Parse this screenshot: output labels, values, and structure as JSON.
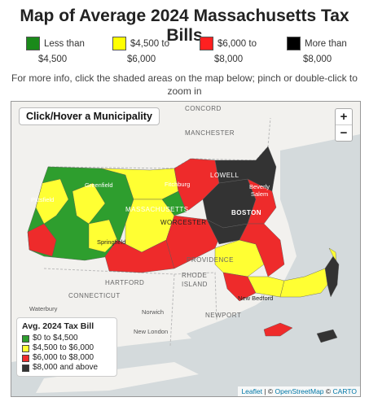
{
  "page": {
    "title": "Map of Average 2024 Massachusetts Tax Bills",
    "info_text": "For more info, click the shaded areas on the map below; pinch or double-click to zoom in"
  },
  "top_legend": [
    {
      "line1": "Less than",
      "line2": "$4,500",
      "color": "#1a8a1a"
    },
    {
      "line1": "$4,500 to",
      "line2": "$6,000",
      "color": "#ffff00"
    },
    {
      "line1": "$6,000 to",
      "line2": "$8,000",
      "color": "#ff2020"
    },
    {
      "line1": "More than",
      "line2": "$8,000",
      "color": "#000000"
    }
  ],
  "map": {
    "hover_box": "Click/Hover a Municipality",
    "zoom_in": "+",
    "zoom_out": "−",
    "legend": {
      "title": "Avg. 2024 Tax Bill",
      "items": [
        {
          "label": "$0 to $4,500",
          "color": "#2e9e2e"
        },
        {
          "label": "$4,500 to $6,000",
          "color": "#ffff33"
        },
        {
          "label": "$6,000 to $8,000",
          "color": "#ee2b2b"
        },
        {
          "label": "$8,000 and above",
          "color": "#333333"
        }
      ]
    },
    "attribution": {
      "leaflet": "Leaflet",
      "sep1": " | © ",
      "osm": "OpenStreetMap",
      "sep2": " © ",
      "carto": "CARTO"
    },
    "place_labels": {
      "concord": "CONCORD",
      "manchester": "MANCHESTER",
      "lowell": "LOWELL",
      "massachusetts": "MASSACHUSETTS",
      "worcester": "WORCESTER",
      "boston": "BOSTON",
      "greenfield": "Greenfield",
      "pittsfield": "Pittsfield",
      "springfield": "Springfield",
      "fitchburg": "Fitchburg",
      "beverly": "Beverly",
      "salem": "Salem",
      "hartford": "HARTFORD",
      "connecticut": "CONNECTICUT",
      "rhode_island": "RHODE\nISLAND",
      "providence": "PROVIDENCE",
      "waterbury": "Waterbury",
      "norwich": "Norwich",
      "new_london": "New London",
      "newport": "NEWPORT",
      "new_bedford": "New Bedford"
    }
  }
}
